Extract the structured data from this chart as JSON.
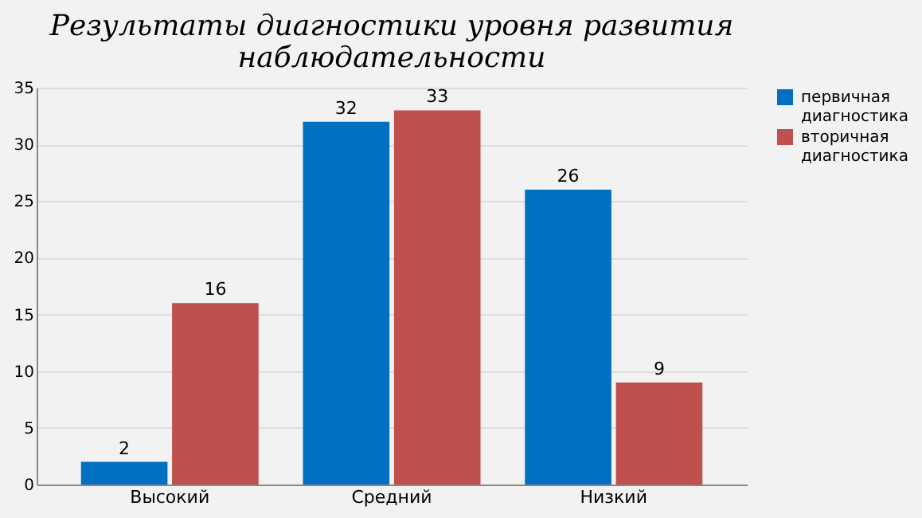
{
  "chart_data": {
    "type": "bar",
    "title": "Результаты диагностики уровня развития наблюдательности",
    "categories": [
      "Высокий",
      "Средний",
      "Низкий"
    ],
    "series": [
      {
        "name": "первичная диагностика",
        "color": "#0070c0",
        "values": [
          2,
          32,
          26
        ]
      },
      {
        "name": "вторичная диагностика",
        "color": "#c0504d",
        "values": [
          16,
          33,
          9
        ]
      }
    ],
    "ylim": [
      0,
      35
    ],
    "yticks": [
      0,
      5,
      10,
      15,
      20,
      25,
      30,
      35
    ],
    "grid": "y",
    "legend": "right",
    "data_labels": true
  }
}
